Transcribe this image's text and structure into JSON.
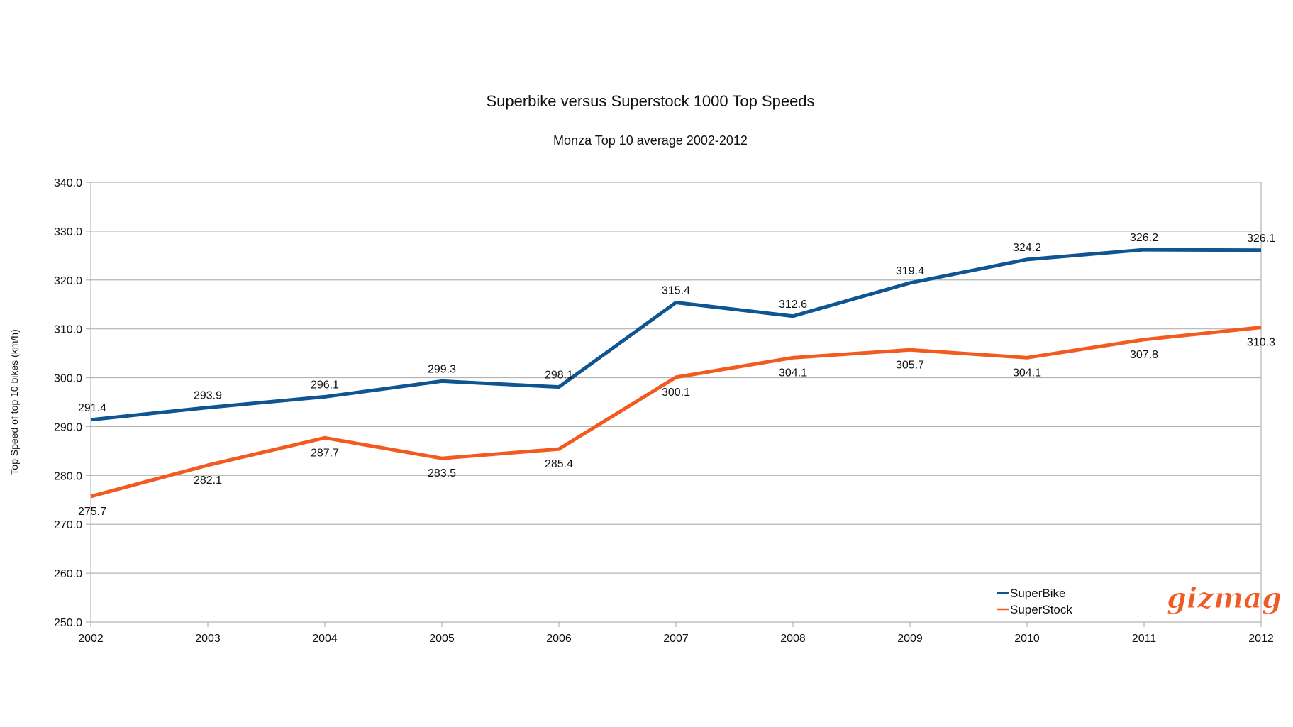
{
  "chart_data": {
    "type": "line",
    "title": "Superbike versus Superstock 1000 Top Speeds",
    "subtitle": "Monza Top 10 average 2002-2012",
    "xlabel": "",
    "ylabel": "Top Speed of top 10 bikes (km/h)",
    "categories": [
      "2002",
      "2003",
      "2004",
      "2005",
      "2006",
      "2007",
      "2008",
      "2009",
      "2010",
      "2011",
      "2012"
    ],
    "yticks": [
      "250.0",
      "260.0",
      "270.0",
      "280.0",
      "290.0",
      "300.0",
      "310.0",
      "320.0",
      "330.0",
      "340.0"
    ],
    "ylim": [
      250,
      340
    ],
    "grid": true,
    "legend_position": "bottom-right",
    "series": [
      {
        "name": "SuperBike",
        "color": "#0f5591",
        "label_position": "above",
        "values": [
          291.4,
          293.9,
          296.1,
          299.3,
          298.1,
          315.4,
          312.6,
          319.4,
          324.2,
          326.2,
          326.1
        ]
      },
      {
        "name": "SuperStock",
        "color": "#f35a1f",
        "label_position": "below",
        "values": [
          275.7,
          282.1,
          287.7,
          283.5,
          285.4,
          300.1,
          304.1,
          305.7,
          304.1,
          307.8,
          310.3
        ]
      }
    ]
  },
  "watermark": {
    "text": "gizmag",
    "color": "#f05a24"
  }
}
